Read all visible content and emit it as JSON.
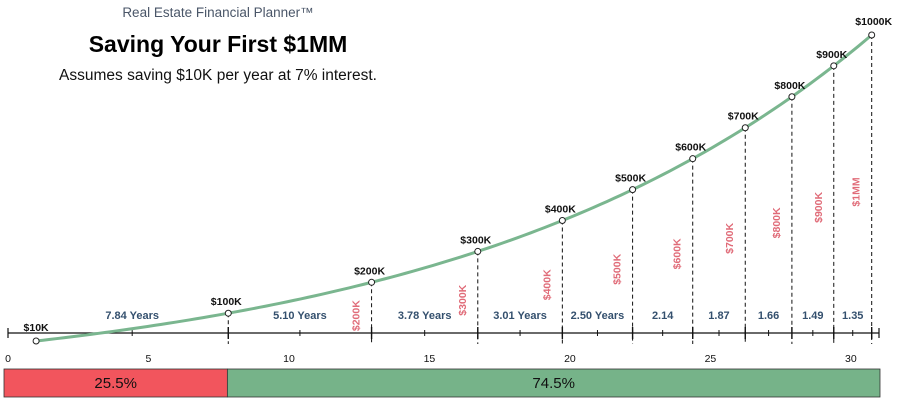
{
  "header": {
    "brand": "Real Estate Financial Planner™",
    "title": "Saving Your First $1MM",
    "subtitle": "Assumes saving $10K per year at 7% interest."
  },
  "colors": {
    "curve": "#7ab68f",
    "red": "#f2555d",
    "green": "#76b389",
    "red_text": "#e06b78",
    "duration_text": "#34506e"
  },
  "chart_data": {
    "type": "line",
    "x_axis": {
      "min": 0,
      "max": 31,
      "ticks": [
        0,
        5,
        10,
        15,
        20,
        25,
        30
      ]
    },
    "curve_points": [
      {
        "x": 1,
        "label": "$10K"
      },
      {
        "x": 7.84,
        "label": "$100K"
      },
      {
        "x": 12.94,
        "label": "$200K"
      },
      {
        "x": 16.72,
        "label": "$300K"
      },
      {
        "x": 19.73,
        "label": "$400K"
      },
      {
        "x": 22.23,
        "label": "$500K"
      },
      {
        "x": 24.37,
        "label": "$600K"
      },
      {
        "x": 26.24,
        "label": "$700K"
      },
      {
        "x": 27.9,
        "label": "$800K"
      },
      {
        "x": 29.39,
        "label": "$900K"
      },
      {
        "x": 30.74,
        "label": "$1000K"
      }
    ],
    "segments": [
      {
        "label": "7.84 Years",
        "milestone": ""
      },
      {
        "label": "5.10 Years",
        "milestone": "$200K"
      },
      {
        "label": "3.78 Years",
        "milestone": "$300K"
      },
      {
        "label": "3.01 Years",
        "milestone": "$400K"
      },
      {
        "label": "2.50 Years",
        "milestone": "$500K"
      },
      {
        "label": "2.14",
        "milestone": "$600K"
      },
      {
        "label": "1.87",
        "milestone": "$700K"
      },
      {
        "label": "1.66",
        "milestone": "$800K"
      },
      {
        "label": "1.49",
        "milestone": "$900K"
      },
      {
        "label": "1.35",
        "milestone": "$1MM"
      }
    ],
    "time_share": [
      {
        "label": "25.5%",
        "value": 25.5,
        "color": "#f2555d"
      },
      {
        "label": "74.5%",
        "value": 74.5,
        "color": "#76b389"
      }
    ]
  }
}
